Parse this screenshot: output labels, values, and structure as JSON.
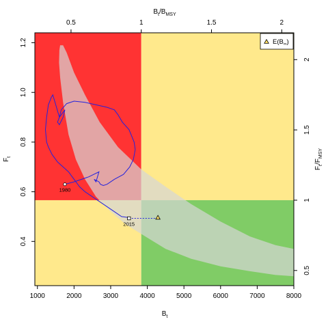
{
  "chart_data": {
    "type": "line",
    "colors": {
      "red_zone": "#ff3333",
      "yellow_zone": "#ffe98c",
      "green_zone": "#80cc66",
      "confidence_region": "#d6d6d6",
      "trajectory": "#2222dd",
      "projection": "#2222dd",
      "triangle_fill": "#ffe066"
    },
    "axes": {
      "x_bottom": {
        "label": "B",
        "label_sub": "t",
        "range": [
          930,
          8000
        ],
        "ticks": [
          1000,
          2000,
          3000,
          4000,
          5000,
          6000,
          7000,
          8000
        ],
        "tick_labels": [
          "1000",
          "2000",
          "3000",
          "4000",
          "5000",
          "6000",
          "7000",
          "8000"
        ]
      },
      "y_left": {
        "label": "F",
        "label_sub": "t",
        "range": [
          0.222,
          1.24
        ],
        "ticks": [
          0.4,
          0.6,
          0.8,
          1.0,
          1.2
        ],
        "tick_labels": [
          "0.4",
          "0.6",
          "0.8",
          "1.0",
          "1.2"
        ]
      },
      "x_top": {
        "label": "B",
        "label_sub": "t",
        "label_div": "/B",
        "label_div_sub": "MSY",
        "ticks": [
          0.5,
          1,
          1.5,
          2
        ],
        "tick_labels": [
          "0.5",
          "1",
          "1.5",
          "2"
        ],
        "bmsy": 3835
      },
      "y_right": {
        "label": "F",
        "label_sub": "t",
        "label_div": "/F",
        "label_div_sub": "MSY",
        "ticks": [
          0.5,
          1,
          1.5,
          2
        ],
        "tick_labels": [
          "0.5",
          "1",
          "1.5",
          "2"
        ],
        "fmsy": 0.566
      }
    },
    "reference": {
      "bmsy": 3835,
      "fmsy": 0.566
    },
    "trajectory": {
      "x": [
        1750,
        2000,
        2400,
        2680,
        2600,
        2550,
        2680,
        2720,
        2800,
        2900,
        3100,
        3350,
        3520,
        3620,
        3670,
        3640,
        3500,
        3320,
        3200,
        3100,
        2900,
        2600,
        2300,
        2000,
        1800,
        1650,
        1600,
        1550,
        1600,
        1700,
        1750,
        1700,
        1600,
        1500,
        1420,
        1380,
        1300,
        1250,
        1220,
        1250,
        1300,
        1400,
        1550,
        1700,
        1850,
        2000,
        2150,
        2300,
        2500,
        2700,
        2900,
        3100,
        3300,
        3500
      ],
      "y": [
        0.63,
        0.64,
        0.66,
        0.68,
        0.64,
        0.65,
        0.64,
        0.63,
        0.625,
        0.63,
        0.65,
        0.67,
        0.7,
        0.73,
        0.77,
        0.8,
        0.85,
        0.88,
        0.91,
        0.93,
        0.94,
        0.95,
        0.96,
        0.965,
        0.955,
        0.93,
        0.9,
        0.88,
        0.87,
        0.9,
        0.93,
        0.92,
        0.9,
        0.95,
        0.99,
        0.98,
        0.95,
        0.9,
        0.85,
        0.8,
        0.78,
        0.75,
        0.72,
        0.7,
        0.68,
        0.65,
        0.62,
        0.6,
        0.58,
        0.56,
        0.54,
        0.52,
        0.5,
        0.496
      ],
      "start_label": "1980",
      "end_label": "2015"
    },
    "projection": {
      "x": [
        3500,
        4290
      ],
      "y": [
        0.493,
        0.493
      ]
    },
    "expected_point": {
      "x": 4290,
      "y": 0.496
    },
    "confidence_region": {
      "x": [
        1620,
        1700,
        1800,
        2000,
        2300,
        2700,
        3200,
        3835,
        4500,
        5200,
        6000,
        6800,
        7500,
        8000,
        8000,
        7500,
        6800,
        6000,
        5200,
        4500,
        3835,
        3400,
        3000,
        2600,
        2300,
        2050,
        1850,
        1700,
        1620,
        1590,
        1600,
        1620
      ],
      "y": [
        1.19,
        1.19,
        1.16,
        1.08,
        0.99,
        0.88,
        0.78,
        0.69,
        0.62,
        0.55,
        0.48,
        0.42,
        0.385,
        0.37,
        0.26,
        0.265,
        0.28,
        0.3,
        0.33,
        0.37,
        0.43,
        0.47,
        0.52,
        0.58,
        0.65,
        0.73,
        0.83,
        0.96,
        1.06,
        1.12,
        1.17,
        1.19
      ]
    },
    "legend": {
      "label": "E(B",
      "label_sub": "∞",
      "label_close": ")",
      "placement": "top-right"
    }
  }
}
